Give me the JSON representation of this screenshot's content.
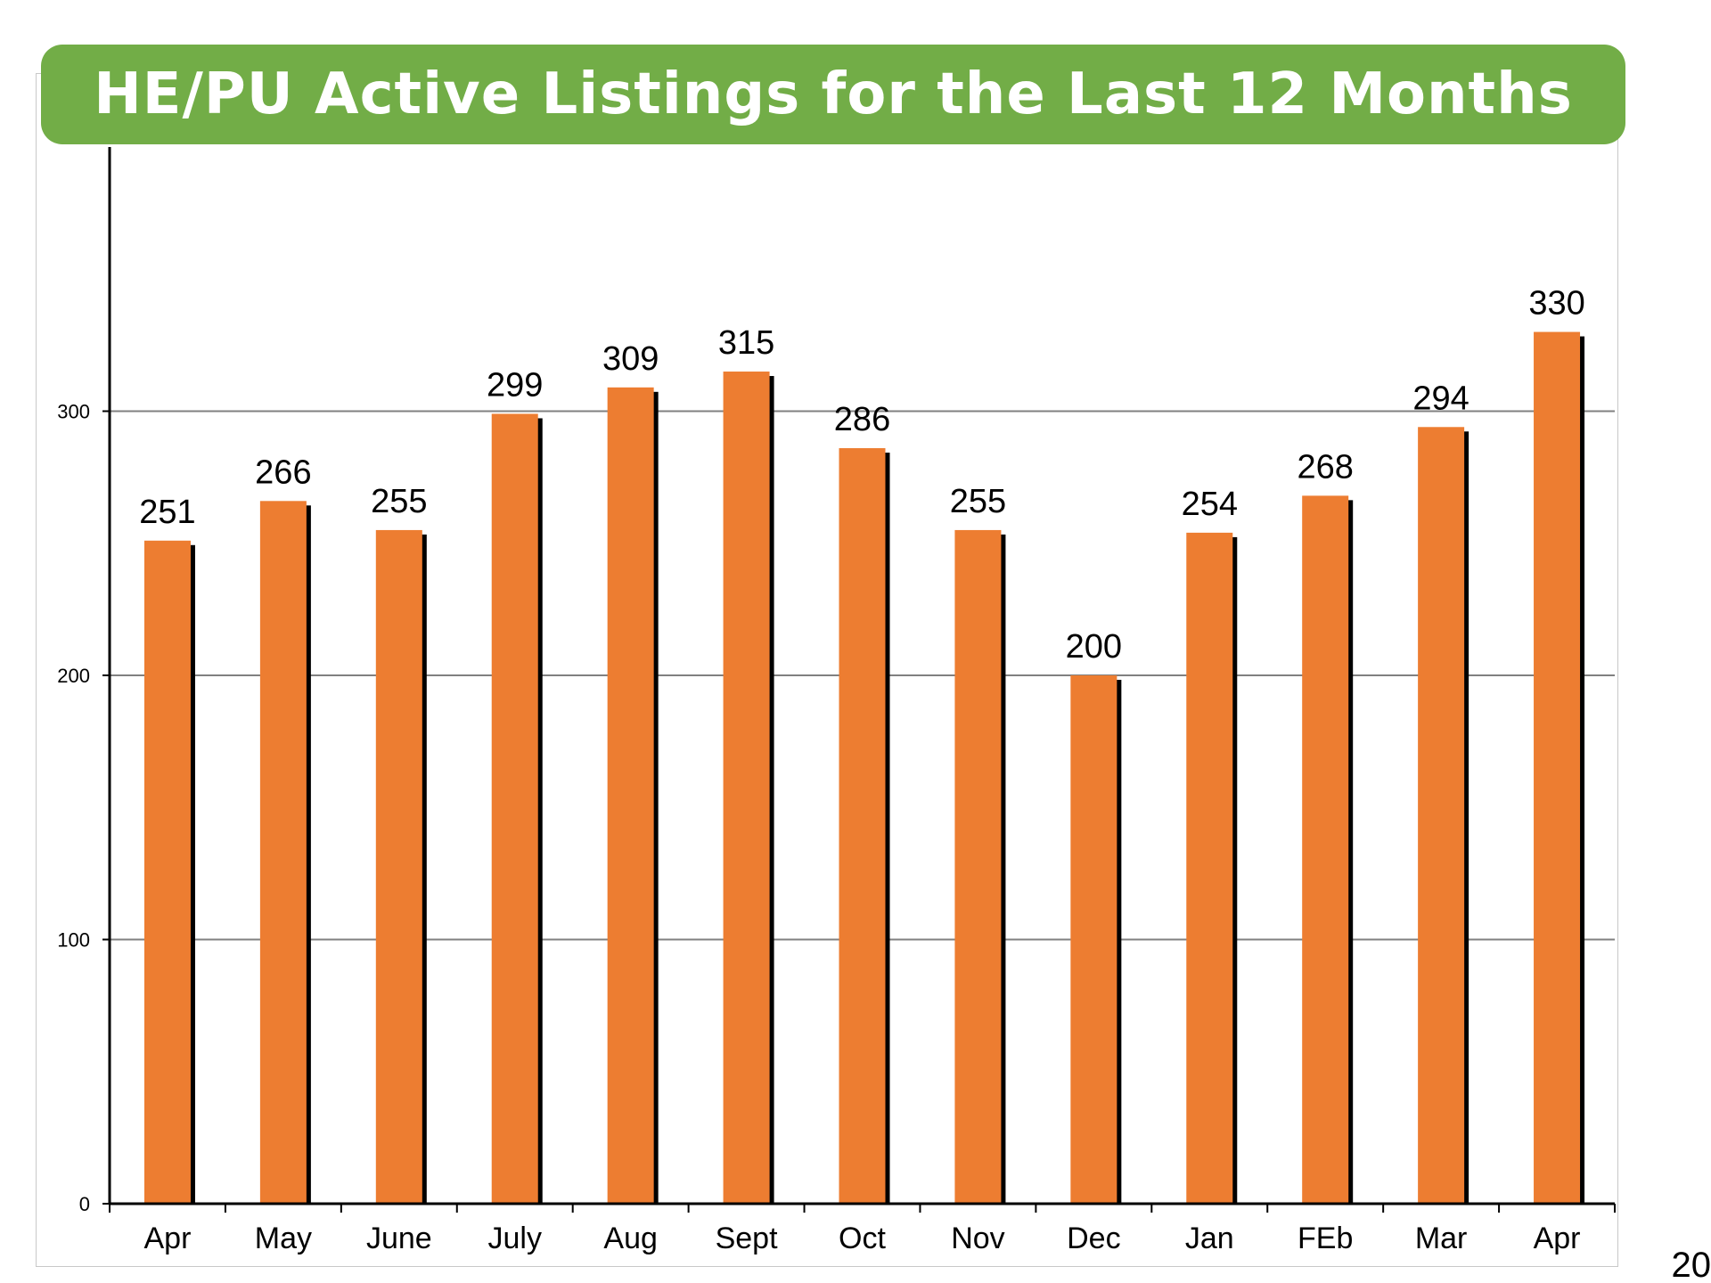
{
  "slide": {
    "title": "HE/PU Active Listings for the Last 12 Months",
    "page_number": "20"
  },
  "colors": {
    "banner": "#72ad47",
    "bar": "#ed7d31",
    "bar_shadow": "#000000",
    "gridline": "#808080",
    "axis": "#000000"
  },
  "chart_data": {
    "type": "bar",
    "title": "HE/PU Active Listings for the Last 12 Months",
    "xlabel": "",
    "ylabel": "",
    "categories": [
      "Apr",
      "May",
      "June",
      "July",
      "Aug",
      "Sept",
      "Oct",
      "Nov",
      "Dec",
      "Jan",
      "FEb",
      "Mar",
      "Apr"
    ],
    "values": [
      251,
      266,
      255,
      299,
      309,
      315,
      286,
      255,
      200,
      254,
      268,
      294,
      330
    ],
    "ylim": [
      0,
      400
    ],
    "yticks": [
      0,
      100,
      200,
      300
    ],
    "grid": true,
    "legend": "none",
    "data_labels": true
  }
}
